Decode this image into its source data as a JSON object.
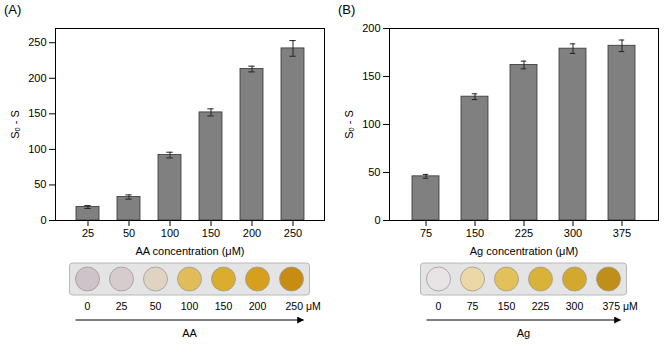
{
  "chart_data": [
    {
      "type": "bar",
      "title": "(A)",
      "x_label": "AA concentration (μM)",
      "y_label": "Sₒ - S",
      "categories": [
        "25",
        "50",
        "100",
        "150",
        "200",
        "250"
      ],
      "values": [
        19,
        33,
        92,
        152,
        213,
        242
      ],
      "errors": [
        2,
        3,
        4,
        5,
        4,
        11
      ],
      "color": "#808080",
      "ylim": [
        0,
        270
      ],
      "yticks": [
        0,
        50,
        100,
        150,
        200,
        250
      ],
      "wells": {
        "labels": [
          "0",
          "25",
          "50",
          "100",
          "150",
          "200",
          "250 μM"
        ],
        "colors": [
          "#cdc3c9",
          "#d6ccce",
          "#e0d3c2",
          "#e0bd58",
          "#dbad2c",
          "#d6a01e",
          "#c98c12"
        ],
        "arrow_label": "AA"
      }
    },
    {
      "type": "bar",
      "title": "(B)",
      "x_label": "Ag concentration (μM)",
      "y_label": "Sₒ - S",
      "categories": [
        "75",
        "150",
        "225",
        "300",
        "375"
      ],
      "values": [
        46,
        129,
        162,
        179,
        182
      ],
      "errors": [
        2,
        3,
        4,
        5,
        6
      ],
      "color": "#808080",
      "ylim": [
        0,
        200
      ],
      "yticks": [
        0,
        50,
        100,
        150,
        200
      ],
      "wells": {
        "labels": [
          "0",
          "75",
          "150",
          "225",
          "300",
          "375 μM"
        ],
        "colors": [
          "#e8e4e6",
          "#ecd8a6",
          "#e2c05a",
          "#d9b23a",
          "#d2a82e",
          "#bf8f1a"
        ],
        "arrow_label": "Ag"
      }
    }
  ]
}
